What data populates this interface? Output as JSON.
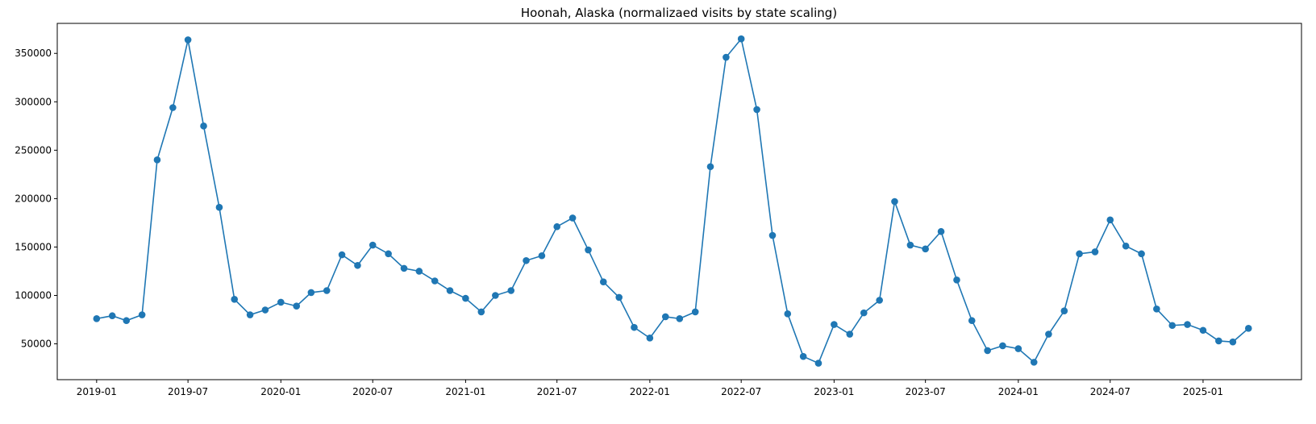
{
  "chart_data": {
    "type": "line",
    "title": "Hoonah, Alaska (normalizaed visits by state scaling)",
    "xlabel": "",
    "ylabel": "",
    "x_ticks": [
      "2019-01",
      "2019-07",
      "2020-01",
      "2020-07",
      "2021-01",
      "2021-07",
      "2022-01",
      "2022-07",
      "2023-01",
      "2023-07",
      "2024-01",
      "2024-07",
      "2025-01"
    ],
    "y_ticks": [
      50000,
      100000,
      150000,
      200000,
      250000,
      300000,
      350000
    ],
    "y_tick_labels": [
      "50000",
      "100000",
      "150000",
      "200000",
      "250000",
      "300000",
      "350000"
    ],
    "xlim": [
      "2018-10-15",
      "2025-07-15"
    ],
    "ylim": [
      13000,
      381000
    ],
    "grid": false,
    "marker": "circle",
    "color": "#1f77b4",
    "series": [
      {
        "name": "",
        "x": [
          "2019-01",
          "2019-02",
          "2019-03",
          "2019-04",
          "2019-05",
          "2019-06",
          "2019-07",
          "2019-08",
          "2019-09",
          "2019-10",
          "2019-11",
          "2019-12",
          "2020-01",
          "2020-02",
          "2020-03",
          "2020-04",
          "2020-05",
          "2020-06",
          "2020-07",
          "2020-08",
          "2020-09",
          "2020-10",
          "2020-11",
          "2020-12",
          "2021-01",
          "2021-02",
          "2021-03",
          "2021-04",
          "2021-05",
          "2021-06",
          "2021-07",
          "2021-08",
          "2021-09",
          "2021-10",
          "2021-11",
          "2021-12",
          "2022-01",
          "2022-02",
          "2022-03",
          "2022-04",
          "2022-05",
          "2022-06",
          "2022-07",
          "2022-08",
          "2022-09",
          "2022-10",
          "2022-11",
          "2022-12",
          "2023-01",
          "2023-02",
          "2023-03",
          "2023-04",
          "2023-05",
          "2023-06",
          "2023-07",
          "2023-08",
          "2023-09",
          "2023-10",
          "2023-11",
          "2023-12",
          "2024-01",
          "2024-02",
          "2024-03",
          "2024-04",
          "2024-05",
          "2024-06",
          "2024-07",
          "2024-08",
          "2024-09",
          "2024-10",
          "2024-11",
          "2024-12",
          "2025-01",
          "2025-02",
          "2025-03",
          "2025-04"
        ],
        "values": [
          76000,
          79000,
          74000,
          80000,
          240000,
          294000,
          364000,
          275000,
          191000,
          96000,
          80000,
          85000,
          93000,
          89000,
          103000,
          105000,
          142000,
          131000,
          152000,
          143000,
          128000,
          125000,
          115000,
          105000,
          97000,
          83000,
          100000,
          105000,
          136000,
          141000,
          171000,
          180000,
          147000,
          114000,
          98000,
          67000,
          56000,
          78000,
          76000,
          83000,
          233000,
          346000,
          365000,
          292000,
          162000,
          81000,
          37000,
          30000,
          70000,
          60000,
          82000,
          95000,
          197000,
          152000,
          148000,
          166000,
          116000,
          74000,
          43000,
          48000,
          45000,
          31000,
          60000,
          84000,
          143000,
          145000,
          178000,
          151000,
          143000,
          86000,
          69000,
          70000,
          64000,
          53000,
          52000,
          66000
        ]
      }
    ]
  }
}
